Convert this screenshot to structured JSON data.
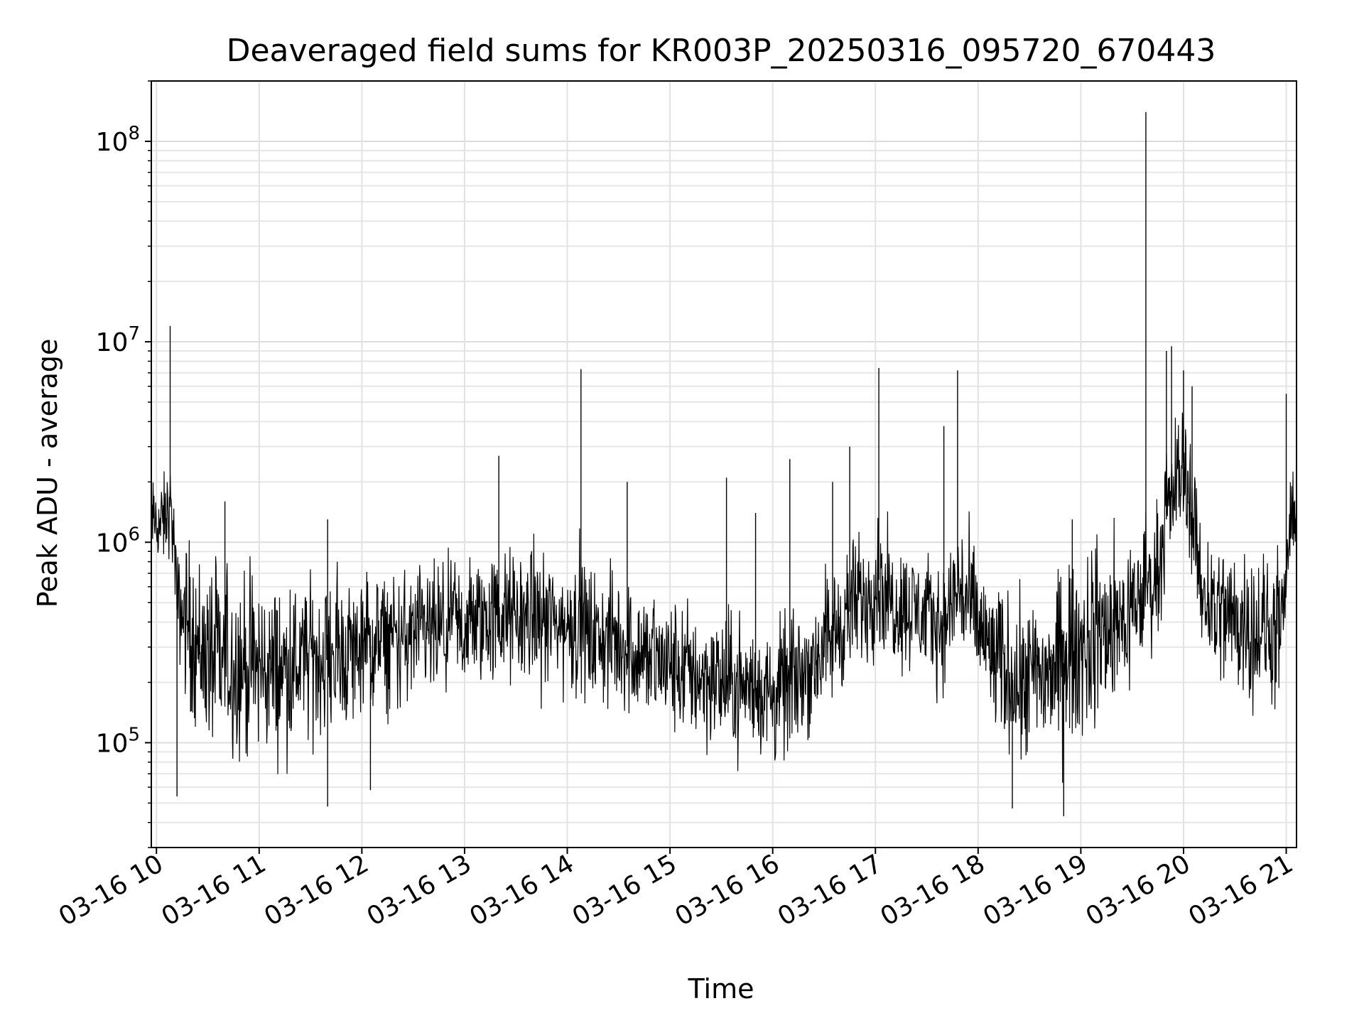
{
  "chart_data": {
    "type": "line",
    "title": "Deaveraged field sums for KR003P_20250316_095720_670443",
    "xlabel": "Time",
    "ylabel": "Peak ADU - average",
    "x_axis": {
      "kind": "time",
      "range": [
        "2025-03-16 09:57",
        "2025-03-16 21:06"
      ],
      "tick_labels": [
        "03-16 10",
        "03-16 11",
        "03-16 12",
        "03-16 13",
        "03-16 14",
        "03-16 15",
        "03-16 16",
        "03-16 17",
        "03-16 18",
        "03-16 19",
        "03-16 20",
        "03-16 21"
      ],
      "tick_rotation": "30deg"
    },
    "y_axis": {
      "scale": "log",
      "range": [
        30000,
        200000000
      ],
      "tick_labels": [
        {
          "value": 100000,
          "base": "10",
          "exp": "5"
        },
        {
          "value": 1000000,
          "base": "10",
          "exp": "6"
        },
        {
          "value": 10000000,
          "base": "10",
          "exp": "7"
        },
        {
          "value": 100000000,
          "base": "10",
          "exp": "8"
        }
      ]
    },
    "grid": true,
    "series": [
      {
        "color": "#000000",
        "line_width": 1,
        "x": [
          "09:57",
          "10:03",
          "10:08",
          "10:10",
          "10:12",
          "10:18",
          "10:25",
          "10:35",
          "10:45",
          "10:55",
          "11:10",
          "11:30",
          "11:50",
          "12:15",
          "12:45",
          "13:15",
          "13:40",
          "14:00",
          "14:08",
          "14:15",
          "14:30",
          "14:45",
          "15:00",
          "15:15",
          "15:30",
          "15:45",
          "16:00",
          "16:15",
          "16:30",
          "16:45",
          "16:55",
          "17:02",
          "17:10",
          "17:25",
          "17:40",
          "17:48",
          "17:55",
          "18:10",
          "18:30",
          "18:50",
          "19:10",
          "19:25",
          "19:35",
          "19:38",
          "19:42",
          "19:50",
          "19:55",
          "20:00",
          "20:05",
          "20:10",
          "20:20",
          "20:35",
          "20:50",
          "20:58",
          "21:02",
          "21:06"
        ],
        "y_center": [
          1300000,
          1200000,
          1500000,
          1100000,
          500000,
          400000,
          300000,
          250000,
          250000,
          240000,
          230000,
          260000,
          280000,
          320000,
          350000,
          420000,
          420000,
          380000,
          380000,
          330000,
          320000,
          270000,
          240000,
          220000,
          200000,
          190000,
          170000,
          210000,
          300000,
          450000,
          550000,
          650000,
          500000,
          450000,
          380000,
          600000,
          480000,
          250000,
          200000,
          250000,
          350000,
          400000,
          500000,
          700000,
          550000,
          1300000,
          2000000,
          2500000,
          1500000,
          600000,
          450000,
          400000,
          350000,
          350000,
          1200000,
          1500000
        ],
        "y_spread_decades": [
          0.25,
          0.3,
          0.3,
          0.3,
          0.3,
          0.55,
          0.6,
          0.6,
          0.6,
          0.6,
          0.55,
          0.5,
          0.5,
          0.45,
          0.45,
          0.45,
          0.45,
          0.45,
          0.45,
          0.45,
          0.45,
          0.45,
          0.45,
          0.45,
          0.45,
          0.45,
          0.45,
          0.45,
          0.45,
          0.45,
          0.45,
          0.45,
          0.4,
          0.4,
          0.4,
          0.5,
          0.45,
          0.5,
          0.55,
          0.6,
          0.55,
          0.5,
          0.45,
          0.45,
          0.45,
          0.4,
          0.4,
          0.4,
          0.45,
          0.5,
          0.5,
          0.5,
          0.5,
          0.5,
          0.25,
          0.25
        ],
        "spikes": [
          {
            "x": "10:08",
            "y": 12000000
          },
          {
            "x": "10:40",
            "y": 1600000
          },
          {
            "x": "11:40",
            "y": 1300000
          },
          {
            "x": "13:20",
            "y": 2700000
          },
          {
            "x": "14:08",
            "y": 7300000
          },
          {
            "x": "14:35",
            "y": 2000000
          },
          {
            "x": "15:33",
            "y": 2100000
          },
          {
            "x": "15:50",
            "y": 1400000
          },
          {
            "x": "16:10",
            "y": 2600000
          },
          {
            "x": "16:35",
            "y": 2000000
          },
          {
            "x": "16:45",
            "y": 3000000
          },
          {
            "x": "17:02",
            "y": 7400000
          },
          {
            "x": "17:40",
            "y": 3800000
          },
          {
            "x": "17:48",
            "y": 7200000
          },
          {
            "x": "18:55",
            "y": 1300000
          },
          {
            "x": "19:38",
            "y": 140000000
          },
          {
            "x": "19:50",
            "y": 9000000
          },
          {
            "x": "19:53",
            "y": 9500000
          },
          {
            "x": "20:00",
            "y": 7200000
          },
          {
            "x": "20:05",
            "y": 6000000
          },
          {
            "x": "21:00",
            "y": 5500000
          },
          {
            "x": "11:40",
            "y": 48000
          },
          {
            "x": "12:05",
            "y": 58000
          },
          {
            "x": "18:20",
            "y": 47000
          },
          {
            "x": "18:50",
            "y": 43000
          },
          {
            "x": "10:12",
            "y": 54000
          }
        ]
      }
    ]
  }
}
